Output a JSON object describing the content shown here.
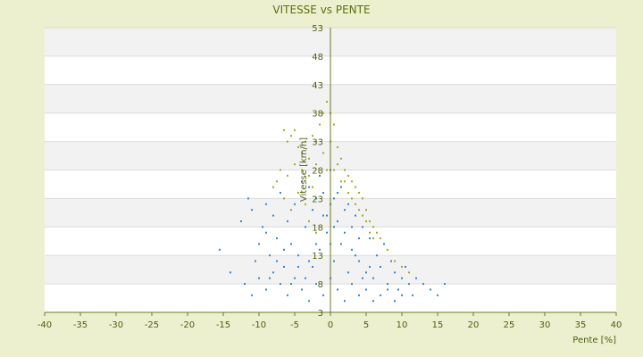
{
  "chart_data": {
    "type": "scatter",
    "title": "VITESSE vs PENTE",
    "xlabel": "Pente [%]",
    "ylabel": "Vitesse [km/h]",
    "xlim": [
      -40,
      40
    ],
    "ylim": [
      3,
      53
    ],
    "x_ticks": [
      "-40",
      "-35",
      "-30",
      "-25",
      "-20",
      "-15",
      "-10",
      "-5",
      "0",
      "5",
      "10",
      "15",
      "20",
      "25",
      "30",
      "35",
      "40"
    ],
    "y_ticks": [
      "3",
      "8",
      "13",
      "18",
      "23",
      "28",
      "33",
      "38",
      "43",
      "48",
      "53"
    ],
    "grid": "horizontal bands",
    "legend": "none",
    "series": [
      {
        "color": "#a9a71a",
        "description": "olive/yellow points, upper envelope",
        "points": [
          [
            -6.5,
            35
          ],
          [
            -6,
            33
          ],
          [
            -5.5,
            34
          ],
          [
            -5,
            35
          ],
          [
            -4.5,
            32
          ],
          [
            -4,
            31
          ],
          [
            -3.5,
            33
          ],
          [
            -3,
            30
          ],
          [
            -2.5,
            34
          ],
          [
            -2,
            33
          ],
          [
            -1.5,
            36
          ],
          [
            -1,
            38
          ],
          [
            -0.5,
            40
          ],
          [
            0,
            38
          ],
          [
            0.5,
            36
          ],
          [
            1,
            32
          ],
          [
            1.5,
            30
          ],
          [
            2,
            28
          ],
          [
            2.5,
            27
          ],
          [
            3,
            26
          ],
          [
            3.5,
            25
          ],
          [
            4,
            24
          ],
          [
            4.5,
            23
          ],
          [
            5,
            21
          ],
          [
            5.5,
            19
          ],
          [
            6,
            18
          ],
          [
            6.5,
            17
          ],
          [
            7,
            16
          ],
          [
            8,
            14
          ],
          [
            9,
            12
          ],
          [
            10,
            11
          ],
          [
            11,
            10
          ],
          [
            -7,
            28
          ],
          [
            -7.5,
            26
          ],
          [
            -8,
            25
          ],
          [
            -6,
            27
          ],
          [
            -5,
            29
          ],
          [
            -4,
            28
          ],
          [
            -3,
            27
          ],
          [
            -2,
            29
          ],
          [
            -1,
            31
          ],
          [
            0,
            33
          ],
          [
            1,
            29
          ],
          [
            2,
            26
          ],
          [
            3,
            23
          ],
          [
            4,
            21
          ],
          [
            5,
            19
          ],
          [
            6,
            16
          ],
          [
            -4.5,
            24
          ],
          [
            -3.5,
            22
          ],
          [
            -2.5,
            25
          ],
          [
            -1.5,
            27
          ],
          [
            -0.5,
            28
          ],
          [
            0.5,
            28
          ],
          [
            1.5,
            26
          ],
          [
            2.5,
            24
          ],
          [
            3.5,
            22
          ],
          [
            4.5,
            20
          ],
          [
            5.5,
            17
          ],
          [
            7.5,
            15
          ],
          [
            -5.5,
            21
          ],
          [
            -6.5,
            23
          ],
          [
            -3,
            19
          ],
          [
            -2,
            17
          ]
        ]
      },
      {
        "color": "#2f86d4",
        "description": "blue points, main cloud",
        "points": [
          [
            -15.5,
            14
          ],
          [
            -14,
            10
          ],
          [
            -12.5,
            19
          ],
          [
            -11.5,
            23
          ],
          [
            -11,
            21
          ],
          [
            -10.5,
            12
          ],
          [
            -10,
            15
          ],
          [
            -9.5,
            18
          ],
          [
            -9,
            22
          ],
          [
            -9,
            17
          ],
          [
            -8.5,
            13
          ],
          [
            -8,
            20
          ],
          [
            -7.5,
            16
          ],
          [
            -7,
            24
          ],
          [
            -6.5,
            11
          ],
          [
            -6,
            19
          ],
          [
            -5.5,
            15
          ],
          [
            -5,
            22
          ],
          [
            -4.5,
            13
          ],
          [
            -4,
            26
          ],
          [
            -3.5,
            18
          ],
          [
            -3,
            12
          ],
          [
            -2.5,
            21
          ],
          [
            -2,
            15
          ],
          [
            -1.5,
            27
          ],
          [
            -1,
            24
          ],
          [
            -0.5,
            20
          ],
          [
            0,
            28
          ],
          [
            0.5,
            23
          ],
          [
            1,
            19
          ],
          [
            1.5,
            25
          ],
          [
            2,
            17
          ],
          [
            2.5,
            22
          ],
          [
            3,
            14
          ],
          [
            3.5,
            20
          ],
          [
            4,
            12
          ],
          [
            4.5,
            18
          ],
          [
            5,
            10
          ],
          [
            5.5,
            16
          ],
          [
            6,
            9
          ],
          [
            6.5,
            13
          ],
          [
            7,
            11
          ],
          [
            7.5,
            15
          ],
          [
            8,
            8
          ],
          [
            8.5,
            12
          ],
          [
            9,
            10
          ],
          [
            9.5,
            7
          ],
          [
            10,
            9
          ],
          [
            10.5,
            11
          ],
          [
            11,
            8
          ],
          [
            11.5,
            6
          ],
          [
            12,
            9
          ],
          [
            13,
            8
          ],
          [
            14,
            7
          ],
          [
            15,
            6
          ],
          [
            16,
            8
          ],
          [
            -12,
            8
          ],
          [
            -11,
            6
          ],
          [
            -10,
            9
          ],
          [
            -9,
            7
          ],
          [
            -8,
            10
          ],
          [
            -7,
            8
          ],
          [
            -6,
            6
          ],
          [
            -5,
            9
          ],
          [
            -4,
            7
          ],
          [
            -3,
            5
          ],
          [
            -2,
            8
          ],
          [
            -1,
            6
          ],
          [
            0,
            9
          ],
          [
            1,
            7
          ],
          [
            2,
            5
          ],
          [
            3,
            8
          ],
          [
            4,
            6
          ],
          [
            5,
            7
          ],
          [
            6,
            5
          ],
          [
            7,
            6
          ],
          [
            8,
            7
          ],
          [
            9,
            5
          ],
          [
            10,
            6
          ],
          [
            -2.5,
            11
          ],
          [
            -1.5,
            14
          ],
          [
            -0.5,
            17
          ],
          [
            0.5,
            12
          ],
          [
            1.5,
            15
          ],
          [
            2.5,
            10
          ],
          [
            3.5,
            13
          ],
          [
            4.5,
            9
          ],
          [
            5.5,
            11
          ],
          [
            -3.5,
            9
          ],
          [
            -4.5,
            11
          ],
          [
            -5.5,
            8
          ],
          [
            -6.5,
            14
          ],
          [
            -7.5,
            12
          ],
          [
            -8.5,
            9
          ],
          [
            -1,
            20
          ],
          [
            0,
            22
          ],
          [
            1,
            24
          ],
          [
            2,
            21
          ],
          [
            3,
            18
          ],
          [
            4,
            16
          ],
          [
            -2,
            23
          ],
          [
            -3,
            25
          ],
          [
            0,
            15
          ],
          [
            0.5,
            18
          ]
        ]
      }
    ]
  }
}
